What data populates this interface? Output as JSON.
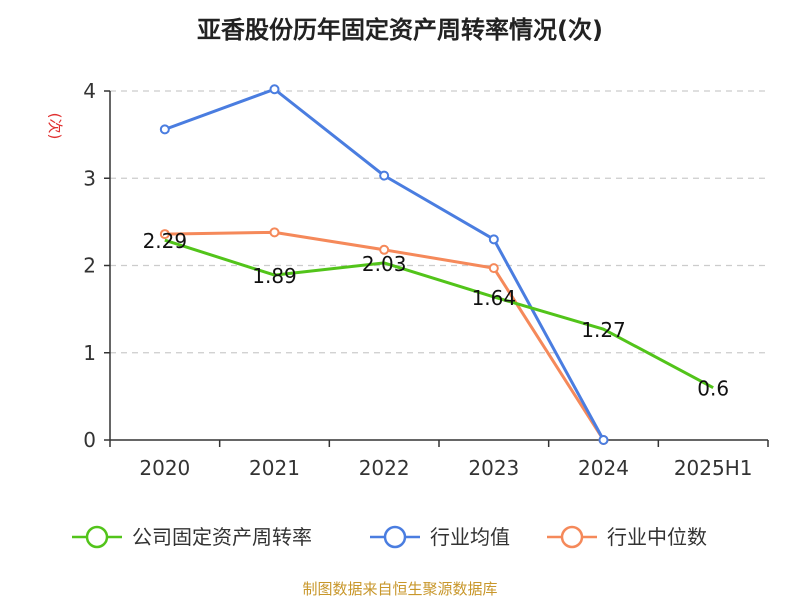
{
  "title": "亚香股份历年固定资产周转率情况(次)",
  "source": "制图数据来自恒生聚源数据库",
  "chart_data": {
    "type": "line",
    "title": "亚香股份历年固定资产周转率情况(次)",
    "ylabel": "(次)",
    "xlabel": "",
    "categories": [
      "2020",
      "2021",
      "2022",
      "2023",
      "2024",
      "2025H1"
    ],
    "ylim": [
      0,
      4
    ],
    "yticks": [
      0,
      1,
      2,
      3,
      4
    ],
    "grid": true,
    "legend_position": "bottom",
    "series": [
      {
        "name": "公司固定资产周转率",
        "color": "#52c41a",
        "values": [
          2.29,
          1.89,
          2.03,
          1.64,
          1.27,
          0.6
        ],
        "labels": [
          "2.29",
          "1.89",
          "2.03",
          "1.64",
          "1.27",
          "0.6"
        ],
        "markers": false
      },
      {
        "name": "行业均值",
        "color": "#4a7de0",
        "values": [
          3.56,
          4.02,
          3.03,
          2.3,
          0.0,
          null
        ],
        "markers": true
      },
      {
        "name": "行业中位数",
        "color": "#f5895a",
        "values": [
          2.36,
          2.38,
          2.18,
          1.97,
          0.0,
          null
        ],
        "markers": true
      }
    ]
  }
}
